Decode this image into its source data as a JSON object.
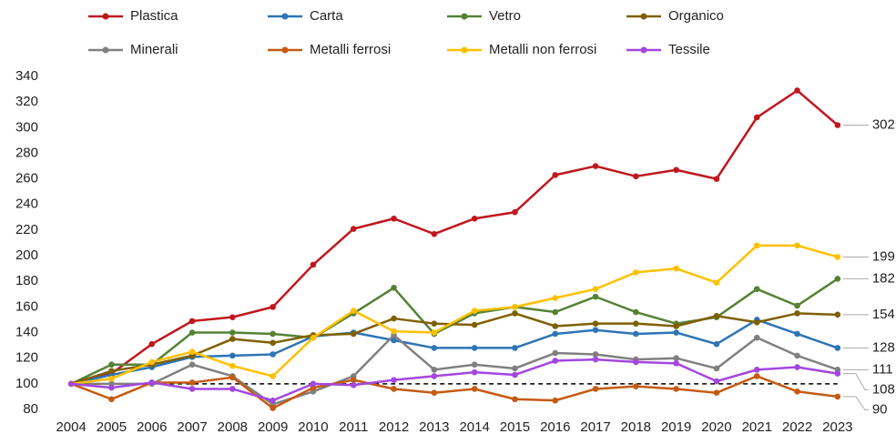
{
  "chart_data": {
    "type": "line",
    "categories": [
      "2004",
      "2005",
      "2006",
      "2007",
      "2008",
      "2009",
      "2010",
      "2011",
      "2012",
      "2013",
      "2014",
      "2015",
      "2016",
      "2017",
      "2018",
      "2019",
      "2020",
      "2021",
      "2022",
      "2023"
    ],
    "series": [
      {
        "name": "Plastica",
        "color": "#c0171d",
        "values": [
          100,
          108,
          131,
          149,
          152,
          160,
          193,
          221,
          229,
          217,
          229,
          234,
          263,
          270,
          262,
          267,
          260,
          308,
          329,
          302
        ]
      },
      {
        "name": "Carta",
        "color": "#2e75b6",
        "values": [
          100,
          107,
          113,
          121,
          122,
          123,
          137,
          140,
          134,
          128,
          128,
          128,
          139,
          142,
          139,
          140,
          131,
          150,
          139,
          128
        ]
      },
      {
        "name": "Vetro",
        "color": "#548235",
        "values": [
          100,
          115,
          115,
          140,
          140,
          139,
          136,
          155,
          175,
          139,
          155,
          160,
          156,
          168,
          156,
          147,
          152,
          174,
          161,
          182
        ]
      },
      {
        "name": "Organico",
        "color": "#7f6000",
        "values": [
          100,
          110,
          115,
          122,
          135,
          132,
          138,
          139,
          151,
          147,
          146,
          155,
          145,
          147,
          147,
          145,
          153,
          148,
          155,
          154
        ]
      },
      {
        "name": "Minerali",
        "color": "#808080",
        "values": [
          100,
          100,
          100,
          115,
          106,
          84,
          94,
          106,
          138,
          111,
          115,
          112,
          124,
          123,
          119,
          120,
          112,
          136,
          122,
          111
        ]
      },
      {
        "name": "Metalli ferrosi",
        "color": "#c55a11",
        "values": [
          100,
          88,
          101,
          101,
          105,
          81,
          97,
          103,
          96,
          93,
          96,
          88,
          87,
          96,
          98,
          96,
          93,
          106,
          94,
          90
        ]
      },
      {
        "name": "Metalli non ferrosi",
        "color": "#ffc000",
        "values": [
          100,
          104,
          117,
          125,
          114,
          106,
          136,
          157,
          141,
          140,
          157,
          160,
          167,
          174,
          187,
          190,
          179,
          208,
          208,
          199
        ]
      },
      {
        "name": "Tessile",
        "color": "#a347e0",
        "values": [
          100,
          97,
          101,
          96,
          96,
          87,
          100,
          99,
          103,
          106,
          109,
          107,
          118,
          119,
          117,
          116,
          102,
          111,
          113,
          108
        ]
      }
    ],
    "ylim": [
      80,
      340
    ],
    "yticks": [
      80,
      100,
      120,
      140,
      160,
      180,
      200,
      220,
      240,
      260,
      280,
      300,
      320,
      340
    ],
    "reference_line": 100,
    "grid": false,
    "legend": "top",
    "end_labels": true
  }
}
